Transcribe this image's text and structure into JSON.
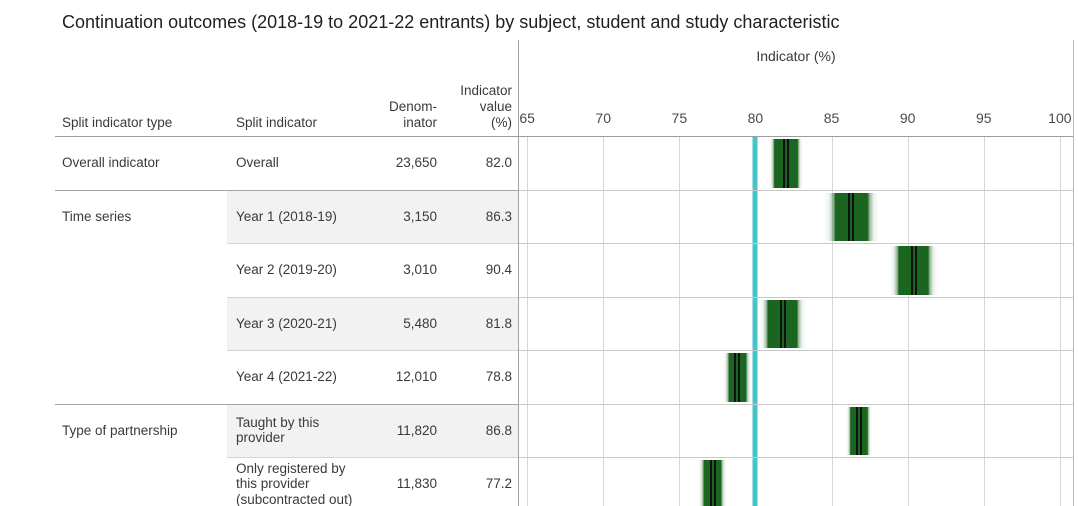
{
  "table": {
    "headers": {
      "split_indicator_type": "Split indicator type",
      "split_indicator": "Split indicator",
      "denominator_lines": [
        "Denom-",
        "inator"
      ],
      "indicator_value_lines": [
        "Indicator",
        "value",
        "(%)"
      ]
    }
  },
  "chart_data": {
    "type": "bar",
    "title": "Continuation outcomes (2018-19 to 2021-22 entrants) by subject, student and study characteristic",
    "xlabel": "Indicator (%)",
    "x_ticks": [
      65,
      70,
      75,
      80,
      85,
      90,
      95,
      100
    ],
    "x_range": [
      64.4,
      100.93
    ],
    "reference_line_value": 80,
    "legend": "shaded band = confidence interval around indicator value, black line = indicator value, teal line = reference at 80%",
    "rows": [
      {
        "split_indicator_type": "Overall indicator",
        "split_indicator": "Overall",
        "denominator": "23,650",
        "indicator_value": "82.0",
        "value": 82.0,
        "ci_inner": 0.75,
        "ci_outer": 1.1,
        "shaded": false,
        "section_start": true
      },
      {
        "split_indicator_type": "Time series",
        "split_indicator": "Year 1 (2018-19)",
        "denominator": "3,150",
        "indicator_value": "86.3",
        "value": 86.3,
        "ci_inner": 1.05,
        "ci_outer": 1.8,
        "shaded": true,
        "section_start": true
      },
      {
        "split_indicator_type": "",
        "split_indicator": "Year 2 (2019-20)",
        "denominator": "3,010",
        "indicator_value": "90.4",
        "value": 90.4,
        "ci_inner": 0.95,
        "ci_outer": 1.6,
        "shaded": false,
        "section_start": false
      },
      {
        "split_indicator_type": "",
        "split_indicator": "Year 3 (2020-21)",
        "denominator": "5,480",
        "indicator_value": "81.8",
        "value": 81.8,
        "ci_inner": 0.95,
        "ci_outer": 1.55,
        "shaded": true,
        "section_start": false
      },
      {
        "split_indicator_type": "",
        "split_indicator": "Year 4 (2021-22)",
        "denominator": "12,010",
        "indicator_value": "78.8",
        "value": 78.8,
        "ci_inner": 0.55,
        "ci_outer": 0.95,
        "shaded": false,
        "section_start": false
      },
      {
        "split_indicator_type": "Type of partnership",
        "split_indicator": "Taught by this provider",
        "denominator": "11,820",
        "indicator_value": "86.8",
        "value": 86.8,
        "ci_inner": 0.55,
        "ci_outer": 0.85,
        "shaded": true,
        "section_start": true
      },
      {
        "split_indicator_type": "",
        "split_indicator": "Only registered by this provider (subcontracted out)",
        "denominator": "11,830",
        "indicator_value": "77.2",
        "value": 77.2,
        "ci_inner": 0.55,
        "ci_outer": 0.95,
        "shaded": false,
        "section_start": false
      }
    ]
  },
  "colors": {
    "reference_line": "#47c4c9",
    "band_green": "#1a6520",
    "band_green_rgb": "26,101,32",
    "marker_black": "#101010",
    "gridline": "#d9d9d9",
    "row_line": "#c9c9c9",
    "section_line": "#a6a6a6",
    "sub_row_line": "#d4d4d4",
    "header_line": "#9c9c9c",
    "row_shade": "#f2f2f2",
    "text": "#3a3a3a"
  }
}
